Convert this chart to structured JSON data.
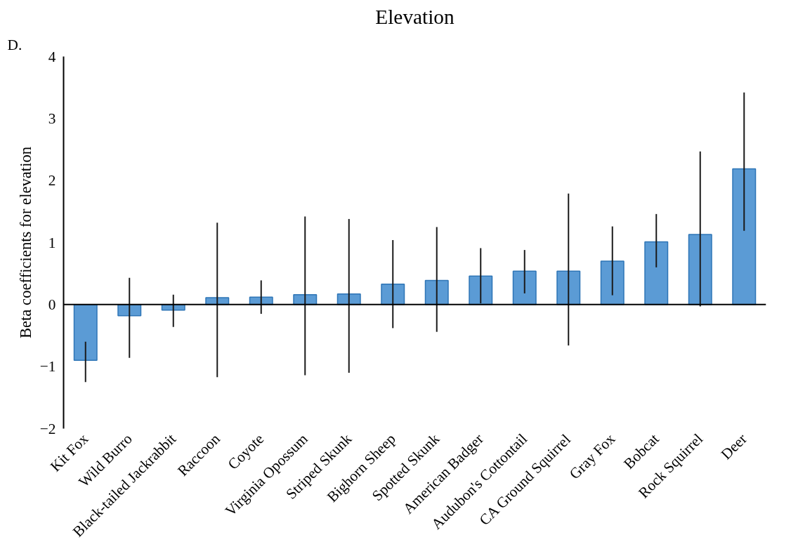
{
  "chart_data": {
    "type": "bar",
    "title": "Elevation",
    "ylabel": "Beta coefficients for elevation",
    "annotations": [
      "D."
    ],
    "categories": [
      "Kit Fox",
      "Wild Burro",
      "Black-tailed Jackrabbit",
      "Raccoon",
      "Coyote",
      "Virginia Opossum",
      "Striped Skunk",
      "Bighorn Sheep",
      "Spotted Skunk",
      "American Badger",
      "Audubon's Cottontail",
      "CA Ground Squirrel",
      "Gray Fox",
      "Bobcat",
      "Rock Squirrel",
      "Deer"
    ],
    "values": [
      -0.9,
      -0.18,
      -0.09,
      0.11,
      0.12,
      0.16,
      0.17,
      0.33,
      0.39,
      0.46,
      0.54,
      0.54,
      0.7,
      1.01,
      1.13,
      2.19
    ],
    "errors": [
      [
        -1.25,
        -0.6
      ],
      [
        -0.86,
        0.43
      ],
      [
        -0.36,
        0.16
      ],
      [
        -1.17,
        1.32
      ],
      [
        -0.15,
        0.39
      ],
      [
        -1.14,
        1.42
      ],
      [
        -1.1,
        1.38
      ],
      [
        -0.38,
        1.04
      ],
      [
        -0.44,
        1.25
      ],
      [
        0.02,
        0.91
      ],
      [
        0.18,
        0.88
      ],
      [
        -0.66,
        1.79
      ],
      [
        0.15,
        1.26
      ],
      [
        0.6,
        1.46
      ],
      [
        -0.03,
        2.47
      ],
      [
        1.19,
        3.42
      ]
    ],
    "color": "#5b9bd5",
    "ylim": [
      -2,
      4
    ],
    "yticks": [
      -2,
      -1,
      0,
      1,
      2,
      3,
      4
    ]
  }
}
